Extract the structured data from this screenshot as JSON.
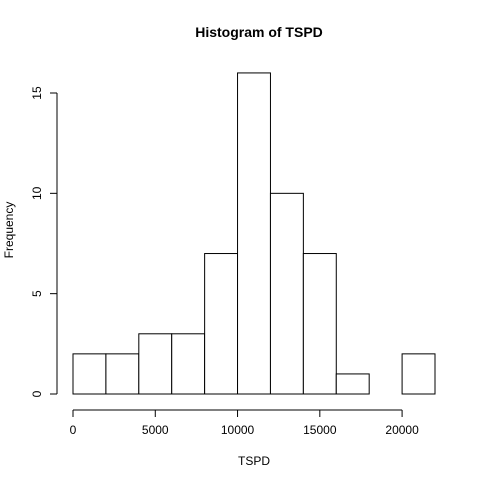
{
  "chart_data": {
    "type": "bar",
    "title": "Histogram of TSPD",
    "xlabel": "TSPD",
    "ylabel": "Frequency",
    "bins": [
      {
        "from": 0,
        "to": 2000,
        "count": 2
      },
      {
        "from": 2000,
        "to": 4000,
        "count": 2
      },
      {
        "from": 4000,
        "to": 6000,
        "count": 3
      },
      {
        "from": 6000,
        "to": 8000,
        "count": 3
      },
      {
        "from": 8000,
        "to": 10000,
        "count": 7
      },
      {
        "from": 10000,
        "to": 12000,
        "count": 16
      },
      {
        "from": 12000,
        "to": 14000,
        "count": 10
      },
      {
        "from": 14000,
        "to": 16000,
        "count": 7
      },
      {
        "from": 16000,
        "to": 18000,
        "count": 1
      },
      {
        "from": 18000,
        "to": 20000,
        "count": 0
      },
      {
        "from": 20000,
        "to": 22000,
        "count": 2
      }
    ],
    "xticks": [
      0,
      5000,
      10000,
      15000,
      20000
    ],
    "yticks": [
      0,
      5,
      10,
      15
    ],
    "xlim": [
      0,
      22000
    ],
    "ylim": [
      0,
      16
    ],
    "bar_fill": "#ffffff",
    "bar_stroke": "#000000",
    "grid": false,
    "legend": "none"
  }
}
